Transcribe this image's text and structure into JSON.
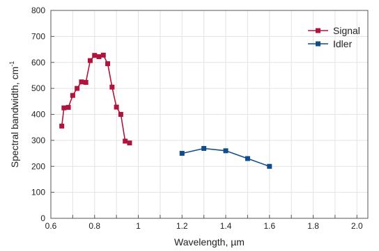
{
  "chart_data": {
    "type": "line",
    "xlabel": "Wavelength, µm",
    "ylabel": "Spectral bandwidth, cm",
    "ylabel_superscript": "-1",
    "xlim": [
      0.6,
      2.05
    ],
    "ylim": [
      0,
      800
    ],
    "xticks": [
      0.6,
      0.7,
      0.8,
      0.9,
      1.0,
      1.1,
      1.2,
      1.3,
      1.4,
      1.5,
      1.6,
      1.7,
      1.8,
      1.9,
      2.0
    ],
    "xtick_labels": [
      "0.6",
      "",
      "0.8",
      "",
      "1",
      "",
      "1.2",
      "",
      "1.4",
      "",
      "1.6",
      "",
      "1.8",
      "",
      "2.0"
    ],
    "yticks": [
      0,
      100,
      200,
      300,
      400,
      500,
      600,
      700,
      800
    ],
    "grid": true,
    "legend_position": "top-right",
    "series": [
      {
        "name": "Signal",
        "color": "#b0143c",
        "x": [
          0.65,
          0.66,
          0.68,
          0.7,
          0.72,
          0.74,
          0.76,
          0.78,
          0.8,
          0.82,
          0.84,
          0.86,
          0.88,
          0.9,
          0.92,
          0.94,
          0.96
        ],
        "y": [
          355,
          425,
          427,
          473,
          500,
          525,
          523,
          607,
          627,
          622,
          628,
          595,
          505,
          428,
          400,
          297,
          290
        ]
      },
      {
        "name": "Idler",
        "color": "#0f4c8a",
        "x": [
          1.2,
          1.3,
          1.4,
          1.5,
          1.6
        ],
        "y": [
          250,
          269,
          260,
          230,
          200
        ]
      }
    ]
  }
}
